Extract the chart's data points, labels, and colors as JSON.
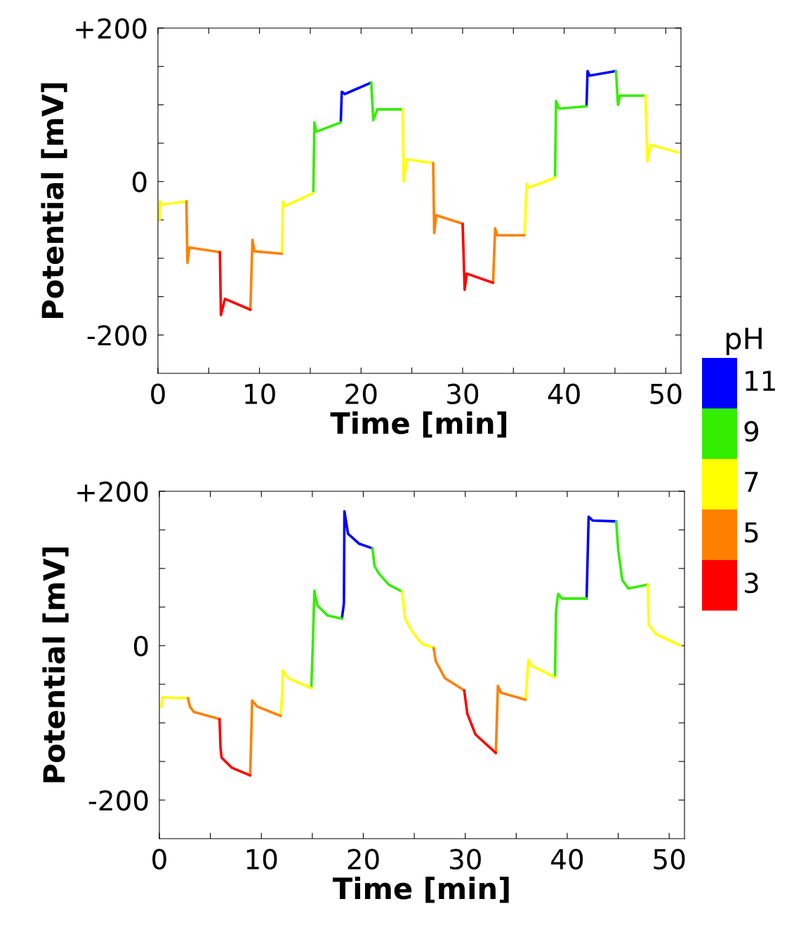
{
  "chart_data": [
    {
      "type": "line",
      "xlabel": "Time [min]",
      "ylabel": "Potential [mV]",
      "xlim": [
        0,
        51.5
      ],
      "ylim": [
        -250,
        200
      ],
      "xticks": [
        0,
        {
          "value": 5,
          "label": null
        },
        10,
        {
          "value": 15,
          "label": null
        },
        20,
        {
          "value": 25,
          "label": null
        },
        30,
        {
          "value": 35,
          "label": null
        },
        40,
        {
          "value": 45,
          "label": null
        },
        50
      ],
      "yticks": [
        {
          "value": 200,
          "label": "+200"
        },
        {
          "value": 150,
          "label": null
        },
        {
          "value": 100,
          "label": null
        },
        {
          "value": 50,
          "label": null
        },
        0,
        {
          "value": -50,
          "label": null
        },
        {
          "value": -100,
          "label": null
        },
        {
          "value": -150,
          "label": null
        },
        -200
      ],
      "grid": false,
      "legend": "right",
      "legend_title": "pH",
      "marker": "none",
      "line_style": "solid",
      "series": [
        {
          "name": "11",
          "color": "#0000ff",
          "x": [
            18.0,
            18.1,
            18.4,
            21.0,
            null,
            42.2,
            42.3,
            42.5,
            45.1
          ],
          "values": [
            77,
            117,
            114,
            129,
            null,
            98,
            144,
            138,
            144
          ]
        },
        {
          "name": "9",
          "color": "#33ee00",
          "x": [
            15.3,
            15.4,
            15.6,
            18.0,
            null,
            21.0,
            21.2,
            21.6,
            24.1,
            null,
            39.1,
            39.2,
            39.5,
            42.2,
            null,
            45.1,
            45.3,
            45.5,
            48.0
          ],
          "values": [
            -15,
            77,
            65,
            77,
            null,
            129,
            80,
            94,
            94,
            null,
            5,
            105,
            95,
            98,
            null,
            144,
            100,
            112,
            112
          ]
        },
        {
          "name": "7",
          "color": "#ffff00",
          "x": [
            0.15,
            0.2,
            0.4,
            2.8,
            null,
            12.2,
            12.3,
            12.5,
            15.3,
            null,
            24.1,
            24.2,
            24.5,
            27.1,
            null,
            36.1,
            36.3,
            36.5,
            39.1,
            null,
            48.0,
            48.2,
            48.5,
            51.2
          ],
          "values": [
            -50,
            -26,
            -30,
            -26,
            null,
            -94,
            -26,
            -32,
            -15,
            null,
            94,
            0,
            29,
            24,
            null,
            -70,
            -3,
            -8,
            5,
            null,
            112,
            26,
            48,
            38
          ]
        },
        {
          "name": "5",
          "color": "#ff8000",
          "x": [
            2.8,
            2.9,
            3.1,
            6.1,
            null,
            9.1,
            9.3,
            9.5,
            12.2,
            null,
            27.1,
            27.2,
            27.4,
            30.0,
            null,
            33.0,
            33.2,
            33.4,
            36.1
          ],
          "values": [
            -26,
            -106,
            -86,
            -92,
            null,
            -167,
            -76,
            -91,
            -94,
            null,
            24,
            -67,
            -44,
            -55,
            null,
            -132,
            -61,
            -70,
            -70
          ]
        },
        {
          "name": "3",
          "color": "#ff0000",
          "x": [
            6.1,
            6.2,
            6.6,
            9.1,
            null,
            30.0,
            30.2,
            30.4,
            33.0
          ],
          "values": [
            -92,
            -174,
            -153,
            -167,
            null,
            -55,
            -141,
            -120,
            -132
          ]
        }
      ]
    },
    {
      "type": "line",
      "xlabel": "Time [min]",
      "ylabel": "Potential [mV]",
      "xlim": [
        0,
        51.5
      ],
      "ylim": [
        -250,
        200
      ],
      "xticks": [
        0,
        {
          "value": 5,
          "label": null
        },
        10,
        {
          "value": 15,
          "label": null
        },
        20,
        {
          "value": 25,
          "label": null
        },
        30,
        {
          "value": 35,
          "label": null
        },
        40,
        {
          "value": 45,
          "label": null
        },
        50
      ],
      "yticks": [
        {
          "value": 200,
          "label": "+200"
        },
        {
          "value": 150,
          "label": null
        },
        {
          "value": 100,
          "label": null
        },
        {
          "value": 50,
          "label": null
        },
        0,
        {
          "value": -50,
          "label": null
        },
        {
          "value": -100,
          "label": null
        },
        {
          "value": -150,
          "label": null
        },
        -200
      ],
      "grid": false,
      "marker": "none",
      "line_style": "solid",
      "series": [
        {
          "color": "#0000ff",
          "x": [
            17.9,
            18.1,
            18.15,
            18.5,
            19.6,
            20.9,
            null,
            41.9,
            42.1,
            42.5,
            44.8
          ],
          "values": [
            35,
            55,
            174,
            145,
            132,
            126,
            null,
            61,
            167,
            162,
            161
          ]
        },
        {
          "color": "#33ee00",
          "x": [
            14.9,
            15.05,
            15.2,
            15.5,
            16.5,
            17.9,
            null,
            20.9,
            21.1,
            21.5,
            22.5,
            23.8,
            null,
            38.8,
            38.9,
            39.1,
            39.5,
            41.9,
            null,
            44.8,
            45.0,
            45.4,
            46.0,
            47.9
          ],
          "values": [
            -55,
            2,
            71,
            52,
            39,
            35,
            null,
            126,
            103,
            94,
            79,
            70,
            null,
            -41,
            44,
            67,
            61,
            61,
            null,
            161,
            124,
            85,
            74,
            79
          ]
        },
        {
          "color": "#ffff00",
          "x": [
            0.2,
            0.3,
            2.8,
            null,
            11.9,
            12.05,
            12.1,
            12.6,
            14.9,
            null,
            23.8,
            24.1,
            24.8,
            25.7,
            26.9,
            null,
            35.9,
            36.2,
            36.5,
            38.8,
            null,
            47.9,
            48.0,
            48.7,
            51.1
          ],
          "values": [
            -79,
            -67,
            -68,
            null,
            -91,
            -62,
            -32,
            -42,
            -55,
            null,
            70,
            35,
            18,
            3,
            -3,
            null,
            -70,
            -18,
            -26,
            -41,
            null,
            79,
            27,
            15,
            0
          ]
        },
        {
          "color": "#ff8000",
          "x": [
            2.8,
            3.0,
            3.4,
            5.9,
            null,
            8.9,
            9.0,
            9.1,
            9.6,
            11.9,
            null,
            26.9,
            27.1,
            28.0,
            29.9,
            null,
            33.0,
            33.2,
            33.5,
            35.9
          ],
          "values": [
            -68,
            -79,
            -86,
            -95,
            null,
            -168,
            -123,
            -71,
            -79,
            -91,
            null,
            -3,
            -20,
            -42,
            -58,
            null,
            -139,
            -52,
            -61,
            -70
          ]
        },
        {
          "color": "#ff0000",
          "x": [
            5.9,
            6.0,
            6.1,
            7.1,
            8.9,
            null,
            29.9,
            30.2,
            31.0,
            33.0
          ],
          "values": [
            -95,
            -133,
            -145,
            -158,
            -168,
            null,
            -58,
            -88,
            -115,
            -139
          ]
        }
      ]
    }
  ]
}
